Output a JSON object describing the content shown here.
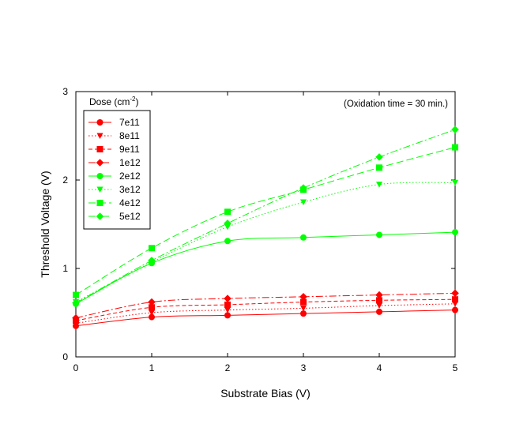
{
  "chart_data": {
    "type": "line",
    "title": "",
    "xlabel": "Substrate Bias (V)",
    "ylabel": "Threshold Voltage (V)",
    "xlim": [
      0,
      5
    ],
    "ylim": [
      0,
      3
    ],
    "xticks": [
      "0",
      "1",
      "2",
      "3",
      "4",
      "5"
    ],
    "yticks": [
      "0",
      "1",
      "2",
      "3"
    ],
    "x": [
      0,
      1,
      2,
      3,
      4,
      5
    ],
    "grid": false,
    "legend": {
      "title_prefix": "Dose (cm",
      "title_sup": "-2",
      "title_suffix": ")",
      "placement": "top-left"
    },
    "annotation": "(Oxidation time = 30 min.)",
    "series": [
      {
        "name": "7e11",
        "color": "#ff0000",
        "marker": "circle",
        "line": "solid",
        "values": [
          0.35,
          0.45,
          0.47,
          0.49,
          0.51,
          0.53
        ]
      },
      {
        "name": "8e11",
        "color": "#ff0000",
        "marker": "triangle",
        "line": "dotted",
        "values": [
          0.38,
          0.5,
          0.53,
          0.55,
          0.58,
          0.6
        ]
      },
      {
        "name": "9e11",
        "color": "#ff0000",
        "marker": "square",
        "line": "dashed",
        "values": [
          0.41,
          0.56,
          0.59,
          0.62,
          0.64,
          0.65
        ]
      },
      {
        "name": "1e12",
        "color": "#ff0000",
        "marker": "diamond",
        "line": "dashdot",
        "values": [
          0.44,
          0.62,
          0.66,
          0.68,
          0.7,
          0.72
        ]
      },
      {
        "name": "2e12",
        "color": "#00ff00",
        "marker": "circle",
        "line": "solid",
        "values": [
          0.6,
          1.06,
          1.31,
          1.35,
          1.38,
          1.41
        ]
      },
      {
        "name": "3e12",
        "color": "#00ff00",
        "marker": "triangle",
        "line": "dotted",
        "values": [
          0.62,
          1.07,
          1.47,
          1.75,
          1.95,
          1.97
        ]
      },
      {
        "name": "4e12",
        "color": "#00ff00",
        "marker": "square",
        "line": "longdash",
        "values": [
          0.7,
          1.23,
          1.64,
          1.89,
          2.14,
          2.37
        ]
      },
      {
        "name": "5e12",
        "color": "#00ff00",
        "marker": "diamond",
        "line": "dashdot",
        "values": [
          0.61,
          1.09,
          1.51,
          1.91,
          2.26,
          2.57
        ]
      }
    ]
  }
}
